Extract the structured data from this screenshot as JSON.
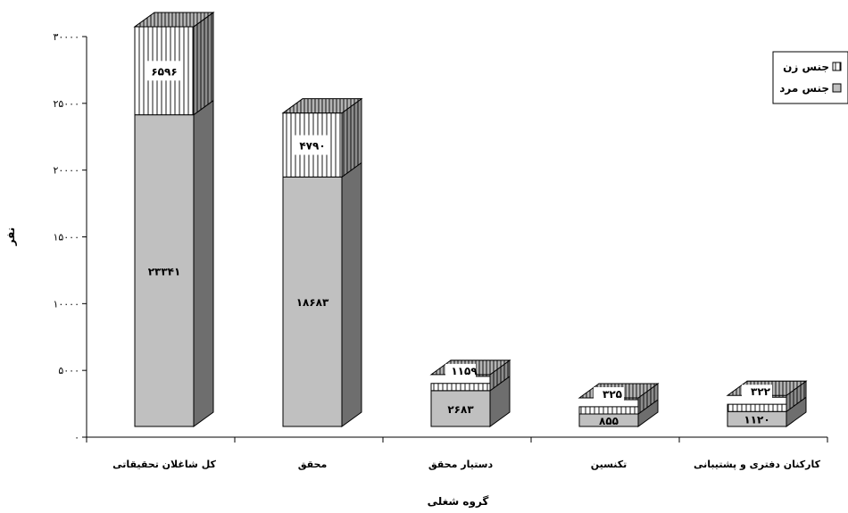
{
  "chart_data": {
    "type": "bar",
    "stacked": true,
    "three_d": true,
    "xlabel": "گروه شغلی",
    "ylabel": "نفر",
    "ylim": [
      0,
      30000
    ],
    "y_ticks": [
      0,
      5000,
      10000,
      15000,
      20000,
      25000,
      30000
    ],
    "y_tick_labels": [
      "۰",
      "۵۰۰۰",
      "۱۰۰۰۰",
      "۱۵۰۰۰",
      "۲۰۰۰۰",
      "۲۵۰۰۰",
      "۳۰۰۰۰"
    ],
    "grid": false,
    "legend_position": "right",
    "categories": [
      "کل شاغلان تحقیقاتی",
      "محقق",
      "دستیار محقق",
      "تکنسین",
      "کارکنان دفتری و پشتیبانی"
    ],
    "series": [
      {
        "name": "جنس مرد",
        "values": [
          23341,
          18683,
          2683,
          855,
          1120
        ],
        "labels": [
          "۲۳۳۴۱",
          "۱۸۶۸۳",
          "۲۶۸۳",
          "۸۵۵",
          "۱۱۲۰"
        ],
        "color": "#c0c0c0",
        "pattern": "solid"
      },
      {
        "name": "جنس زن",
        "values": [
          6596,
          4790,
          1159,
          325,
          322
        ],
        "labels": [
          "۶۵۹۶",
          "۴۷۹۰",
          "۱۱۵۹",
          "۳۲۵",
          "۳۲۲"
        ],
        "color": "#ffffff",
        "pattern": "vertical-stripes"
      }
    ]
  }
}
